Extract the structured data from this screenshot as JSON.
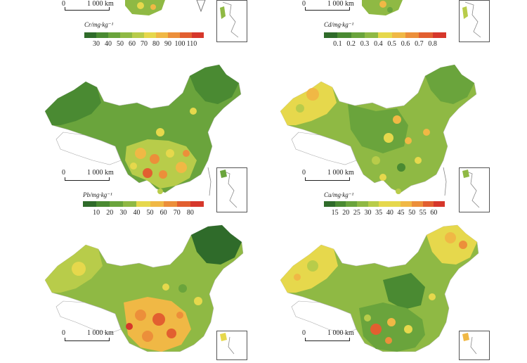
{
  "panels": [
    {
      "id": "cr",
      "scale": {
        "zero": "0",
        "distance": "1 000 km"
      },
      "legend": {
        "title": "Cr/mg·kg⁻¹",
        "ticks": [
          "30",
          "40",
          "50",
          "60",
          "70",
          "80",
          "90",
          "100",
          "110"
        ]
      }
    },
    {
      "id": "cd",
      "scale": {
        "zero": "0",
        "distance": "1 000 km"
      },
      "legend": {
        "title": "Cd/mg·kg⁻¹",
        "ticks": [
          "0.1",
          "0.2",
          "0.3",
          "0.4",
          "0.5",
          "0.6",
          "0.7",
          "0.8"
        ]
      }
    },
    {
      "id": "pb",
      "scale": {
        "zero": "0",
        "distance": "1 000 km"
      },
      "legend": {
        "title": "Pb/mg·kg⁻¹",
        "ticks": [
          "10",
          "20",
          "30",
          "40",
          "50",
          "60",
          "70",
          "80"
        ]
      }
    },
    {
      "id": "cu",
      "scale": {
        "zero": "0",
        "distance": "1 000 km"
      },
      "legend": {
        "title": "Cu/mg·kg⁻¹",
        "ticks": [
          "15",
          "20",
          "25",
          "30",
          "35",
          "40",
          "45",
          "50",
          "55",
          "60"
        ]
      }
    },
    {
      "id": "p5",
      "scale": {
        "zero": "0",
        "distance": "1 000 km"
      }
    },
    {
      "id": "p6",
      "scale": {
        "zero": "0",
        "distance": "1 000 km"
      }
    }
  ],
  "colors": {
    "ramp": [
      "#2f6b2a",
      "#4a8a32",
      "#6aa43c",
      "#8fb944",
      "#b8cc4a",
      "#e6d84c",
      "#f0b845",
      "#ec8f3a",
      "#e25f30",
      "#d6372b"
    ],
    "excluded_region": "#ffffff"
  }
}
